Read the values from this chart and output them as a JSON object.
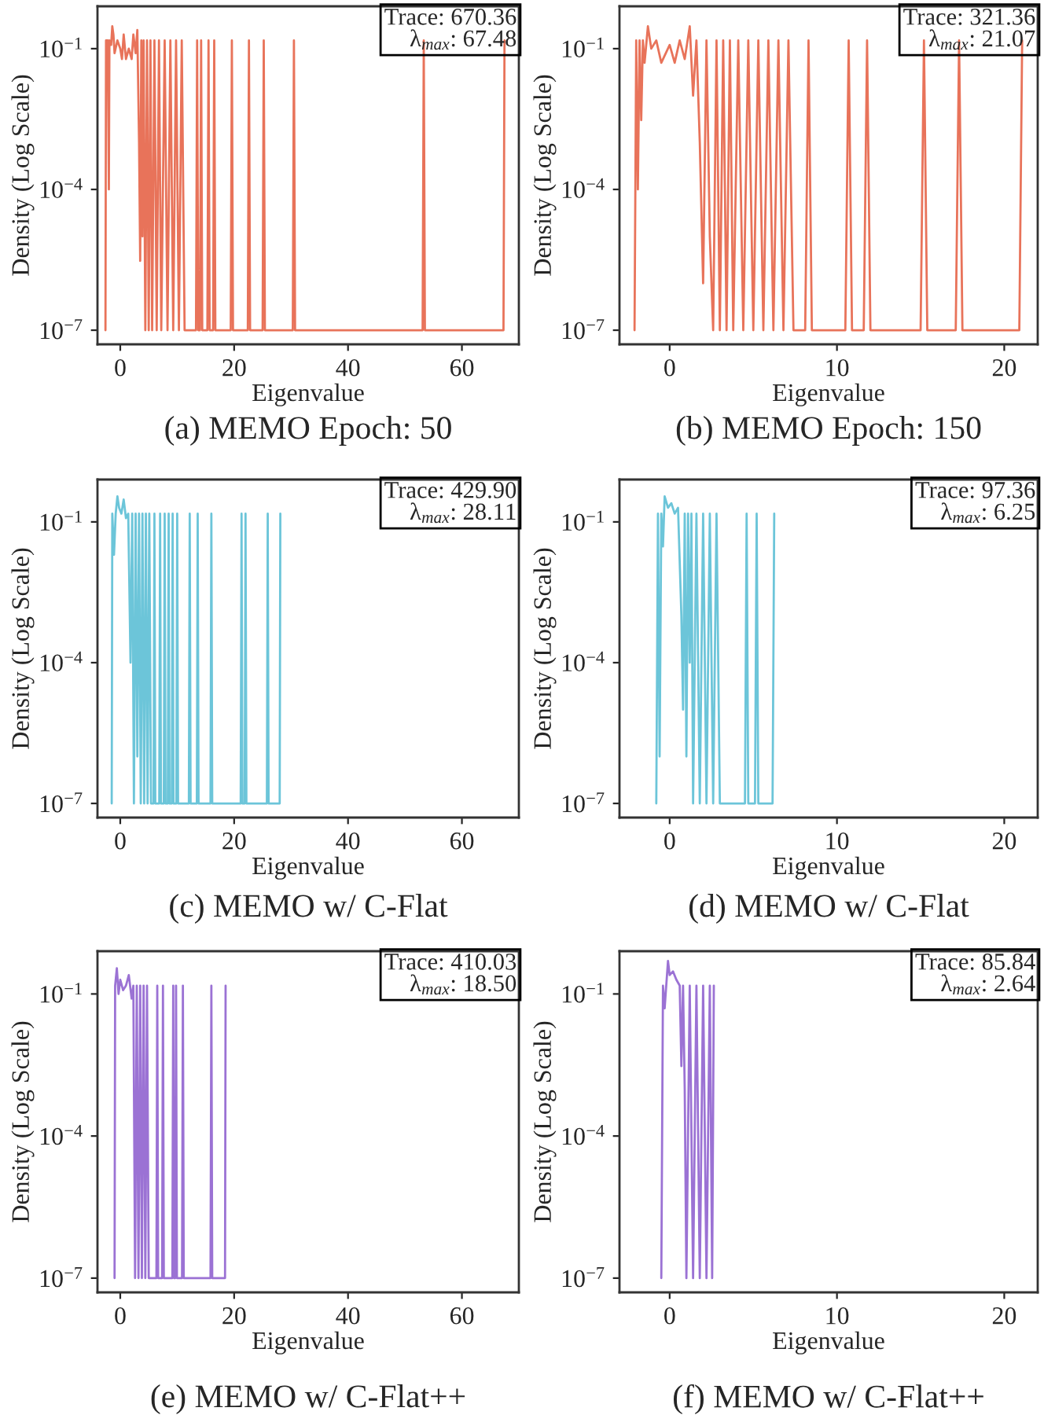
{
  "chart_data": [
    {
      "type": "line",
      "title": "(a) MEMO Epoch: 50",
      "xlabel": "Eigenvalue",
      "ylabel": "Density (Log Scale)",
      "log": true,
      "xlim": [
        -4,
        70
      ],
      "xticks": [
        0,
        20,
        40,
        60
      ],
      "ylim": [
        5e-08,
        0.8
      ],
      "yticks": [
        {
          "value": 1e-07,
          "label": "10$^{−7}$"
        },
        {
          "value": 0.0001,
          "label": "10$^{−4}$"
        },
        {
          "value": 0.1,
          "label": "10$^{−1}$"
        }
      ],
      "annotations": [
        "Trace: 670.36\nλ$_{max}$: 67.48"
      ],
      "series": [
        {
          "color": "#e8735a",
          "x": [
            -2.6,
            -2.5,
            -2.2,
            -2.0,
            -1.9,
            -1.6,
            -1.4,
            -1.2,
            -1.0,
            -0.5,
            0,
            0.3,
            0.6,
            1.0,
            1.5,
            2.0,
            2.3,
            2.7,
            3.0,
            3.3,
            3.5,
            3.7,
            3.9,
            4.1,
            4.4,
            4.7,
            5.0,
            5.3,
            5.6,
            6.0,
            6.4,
            6.8,
            7.2,
            7.8,
            8.3,
            8.8,
            9.3,
            9.8,
            10.3,
            10.8,
            11.3,
            13.3,
            13.5,
            13.7,
            14.0,
            14.2,
            14.4,
            15.3,
            15.5,
            15.7,
            16.3,
            16.5,
            16.7,
            19.4,
            19.6,
            19.8,
            22.4,
            22.6,
            22.8,
            25.0,
            25.2,
            25.4,
            30.3,
            30.5,
            30.7,
            53.1,
            53.3,
            53.5,
            67.3,
            67.48
          ],
          "values": [
            1e-07,
            0.15,
            0.15,
            0.0001,
            0.15,
            0.12,
            0.3,
            0.2,
            0.08,
            0.15,
            0.1,
            0.06,
            0.2,
            0.06,
            0.1,
            0.06,
            0.2,
            0.08,
            0.25,
            0.001,
            3e-06,
            0.15,
            1e-05,
            0.15,
            1e-07,
            0.15,
            1e-07,
            0.15,
            1e-07,
            0.15,
            1e-07,
            0.15,
            1e-07,
            0.15,
            1e-07,
            0.15,
            1e-07,
            0.15,
            1e-07,
            0.15,
            1e-07,
            1e-07,
            0.15,
            1e-07,
            1e-07,
            0.15,
            1e-07,
            1e-07,
            0.15,
            1e-07,
            1e-07,
            0.15,
            1e-07,
            1e-07,
            0.15,
            1e-07,
            1e-07,
            0.15,
            1e-07,
            1e-07,
            0.15,
            1e-07,
            1e-07,
            0.15,
            1e-07,
            1e-07,
            0.15,
            1e-07,
            1e-07,
            0.15
          ]
        }
      ]
    },
    {
      "type": "line",
      "title": "(b) MEMO Epoch: 150",
      "xlabel": "Eigenvalue",
      "ylabel": "Density (Log Scale)",
      "log": true,
      "xlim": [
        -3,
        22
      ],
      "xticks": [
        0,
        10,
        20
      ],
      "ylim": [
        5e-08,
        0.8
      ],
      "yticks": [
        {
          "value": 1e-07,
          "label": "10$^{−7}$"
        },
        {
          "value": 0.0001,
          "label": "10$^{−4}$"
        },
        {
          "value": 0.1,
          "label": "10$^{−1}$"
        }
      ],
      "annotations": [
        "Trace: 321.36\nλ$_{max}$: 21.07"
      ],
      "series": [
        {
          "color": "#e8735a",
          "x": [
            -2.1,
            -2.0,
            -1.9,
            -1.8,
            -1.7,
            -1.6,
            -1.5,
            -1.3,
            -1.1,
            -0.8,
            -0.5,
            0,
            0.3,
            0.6,
            0.9,
            1.2,
            1.4,
            1.6,
            1.8,
            2.0,
            2.2,
            2.4,
            2.6,
            2.8,
            3.0,
            3.2,
            3.4,
            3.6,
            3.8,
            4.1,
            4.4,
            4.7,
            5.0,
            5.3,
            5.6,
            5.9,
            6.2,
            6.5,
            6.8,
            7.1,
            7.4,
            8.1,
            8.3,
            8.5,
            10.5,
            10.7,
            10.9,
            11.6,
            11.8,
            12.0,
            15.0,
            15.2,
            15.4,
            17.1,
            17.3,
            17.5,
            20.9,
            21.07
          ],
          "values": [
            1e-07,
            0.15,
            0.0001,
            0.15,
            0.003,
            0.15,
            0.05,
            0.3,
            0.1,
            0.15,
            0.05,
            0.12,
            0.05,
            0.15,
            0.06,
            0.3,
            0.01,
            0.15,
            0.001,
            1e-06,
            0.15,
            1e-05,
            1e-07,
            0.15,
            1e-07,
            0.15,
            1e-07,
            0.15,
            1e-07,
            0.15,
            1e-07,
            0.15,
            1e-07,
            0.15,
            1e-07,
            0.15,
            1e-07,
            0.15,
            1e-07,
            0.15,
            1e-07,
            1e-07,
            0.15,
            1e-07,
            1e-07,
            0.15,
            1e-07,
            1e-07,
            0.15,
            1e-07,
            1e-07,
            0.15,
            1e-07,
            1e-07,
            0.15,
            1e-07,
            1e-07,
            0.15
          ]
        }
      ]
    },
    {
      "type": "line",
      "title": "(c) MEMO w/ C-Flat",
      "xlabel": "Eigenvalue",
      "ylabel": "Density (Log Scale)",
      "log": true,
      "xlim": [
        -4,
        70
      ],
      "xticks": [
        0,
        20,
        40,
        60
      ],
      "ylim": [
        5e-08,
        0.8
      ],
      "yticks": [
        {
          "value": 1e-07,
          "label": "10$^{−7}$"
        },
        {
          "value": 0.0001,
          "label": "10$^{−4}$"
        },
        {
          "value": 0.1,
          "label": "10$^{−1}$"
        }
      ],
      "annotations": [
        "Trace: 429.90\nλ$_{max}$: 28.11"
      ],
      "series": [
        {
          "color": "#6cc5d9",
          "x": [
            -1.5,
            -1.4,
            -1.1,
            -0.8,
            -0.5,
            -0.2,
            0.2,
            0.6,
            1.0,
            1.4,
            1.8,
            2.1,
            2.4,
            2.7,
            3.0,
            3.3,
            3.6,
            3.9,
            4.2,
            4.5,
            4.8,
            5.1,
            5.4,
            5.85,
            6.0,
            6.15,
            6.85,
            7.0,
            7.15,
            7.65,
            7.8,
            7.95,
            8.35,
            8.5,
            8.65,
            9.05,
            9.2,
            9.35,
            9.85,
            10.0,
            10.15,
            12.05,
            12.2,
            12.35,
            13.45,
            13.6,
            13.75,
            15.85,
            16.0,
            16.15,
            21.15,
            21.3,
            21.45,
            21.85,
            22.0,
            22.15,
            25.75,
            25.9,
            26.05,
            28.0,
            28.11
          ],
          "values": [
            1e-07,
            0.15,
            0.02,
            0.15,
            0.35,
            0.2,
            0.15,
            0.3,
            0.12,
            0.15,
            0.0001,
            0.15,
            1e-07,
            0.15,
            1e-06,
            0.15,
            1e-07,
            0.15,
            1e-07,
            0.15,
            1e-07,
            0.15,
            1e-07,
            1e-07,
            0.15,
            1e-07,
            1e-07,
            0.15,
            1e-07,
            1e-07,
            0.15,
            1e-07,
            1e-07,
            0.15,
            1e-07,
            1e-07,
            0.15,
            1e-07,
            1e-07,
            0.15,
            1e-07,
            1e-07,
            0.15,
            1e-07,
            1e-07,
            0.15,
            1e-07,
            1e-07,
            0.15,
            1e-07,
            1e-07,
            0.15,
            1e-07,
            1e-07,
            0.15,
            1e-07,
            1e-07,
            0.15,
            1e-07,
            1e-07,
            0.15
          ]
        }
      ]
    },
    {
      "type": "line",
      "title": "(d) MEMO w/ C-Flat",
      "xlabel": "Eigenvalue",
      "ylabel": "Density (Log Scale)",
      "log": true,
      "xlim": [
        -3,
        22
      ],
      "xticks": [
        0,
        10,
        20
      ],
      "ylim": [
        5e-08,
        0.8
      ],
      "yticks": [
        {
          "value": 1e-07,
          "label": "10$^{−7}$"
        },
        {
          "value": 0.0001,
          "label": "10$^{−4}$"
        },
        {
          "value": 0.1,
          "label": "10$^{−1}$"
        }
      ],
      "annotations": [
        "Trace: 97.36\nλ$_{max}$: 6.25"
      ],
      "series": [
        {
          "color": "#6cc5d9",
          "x": [
            -0.8,
            -0.7,
            -0.6,
            -0.5,
            -0.4,
            -0.3,
            -0.1,
            0.1,
            0.3,
            0.5,
            0.7,
            0.8,
            0.9,
            1.0,
            1.1,
            1.2,
            1.3,
            1.4,
            1.6,
            1.8,
            2.0,
            2.2,
            2.4,
            2.6,
            2.8,
            3.0,
            4.5,
            4.6,
            4.7,
            5.1,
            5.2,
            5.3,
            6.15,
            6.25
          ],
          "values": [
            1e-07,
            0.15,
            1e-06,
            0.15,
            0.03,
            0.35,
            0.2,
            0.25,
            0.15,
            0.2,
            0.001,
            1e-05,
            0.15,
            1e-06,
            0.15,
            0.0001,
            0.15,
            1e-07,
            0.15,
            1e-07,
            0.15,
            1e-07,
            0.15,
            1e-07,
            0.15,
            1e-07,
            1e-07,
            0.15,
            1e-07,
            1e-07,
            0.15,
            1e-07,
            1e-07,
            0.15
          ]
        }
      ]
    },
    {
      "type": "line",
      "title": "(e) MEMO w/ C-Flat++",
      "xlabel": "Eigenvalue",
      "ylabel": "Density (Log Scale)",
      "log": true,
      "xlim": [
        -4,
        70
      ],
      "xticks": [
        0,
        20,
        40,
        60
      ],
      "ylim": [
        5e-08,
        0.8
      ],
      "yticks": [
        {
          "value": 1e-07,
          "label": "10$^{−7}$"
        },
        {
          "value": 0.0001,
          "label": "10$^{−4}$"
        },
        {
          "value": 0.1,
          "label": "10$^{−1}$"
        }
      ],
      "annotations": [
        "Trace: 410.03\nλ$_{max}$: 18.50"
      ],
      "series": [
        {
          "color": "#9b72d4",
          "x": [
            -1.0,
            -0.9,
            -0.6,
            -0.3,
            0.0,
            0.5,
            1.0,
            1.5,
            2.0,
            2.3,
            2.6,
            2.9,
            3.2,
            3.5,
            3.8,
            4.1,
            4.4,
            4.7,
            5.0,
            6.35,
            6.5,
            6.65,
            7.35,
            7.5,
            7.65,
            9.15,
            9.3,
            9.45,
            9.65,
            9.8,
            9.95,
            10.85,
            11.0,
            11.15,
            15.85,
            16.0,
            16.15,
            18.4,
            18.5
          ],
          "values": [
            1e-07,
            0.15,
            0.35,
            0.1,
            0.2,
            0.12,
            0.15,
            0.25,
            0.08,
            0.15,
            1e-07,
            0.15,
            1e-07,
            0.15,
            1e-07,
            0.15,
            1e-07,
            0.15,
            1e-07,
            1e-07,
            0.15,
            1e-07,
            1e-07,
            0.15,
            1e-07,
            1e-07,
            0.15,
            1e-07,
            1e-07,
            0.15,
            1e-07,
            1e-07,
            0.15,
            1e-07,
            1e-07,
            0.15,
            1e-07,
            1e-07,
            0.15
          ]
        }
      ]
    },
    {
      "type": "line",
      "title": "(f) MEMO w/ C-Flat++",
      "xlabel": "Eigenvalue",
      "ylabel": "Density (Log Scale)",
      "log": true,
      "xlim": [
        -3,
        22
      ],
      "xticks": [
        0,
        10,
        20
      ],
      "ylim": [
        5e-08,
        0.8
      ],
      "yticks": [
        {
          "value": 1e-07,
          "label": "10$^{−7}$"
        },
        {
          "value": 0.0001,
          "label": "10$^{−4}$"
        },
        {
          "value": 0.1,
          "label": "10$^{−1}$"
        }
      ],
      "annotations": [
        "Trace: 85.84\nλ$_{max}$: 2.64"
      ],
      "series": [
        {
          "color": "#9b72d4",
          "x": [
            -0.5,
            -0.4,
            -0.3,
            -0.1,
            0.0,
            0.2,
            0.4,
            0.6,
            0.7,
            0.8,
            0.9,
            1.0,
            1.2,
            1.4,
            1.6,
            1.8,
            2.0,
            2.2,
            2.4,
            2.54,
            2.64
          ],
          "values": [
            1e-07,
            0.15,
            0.05,
            0.5,
            0.25,
            0.3,
            0.2,
            0.15,
            0.003,
            0.15,
            0.001,
            1e-07,
            0.15,
            1e-07,
            0.15,
            1e-07,
            0.15,
            1e-07,
            0.15,
            1e-07,
            0.15
          ]
        }
      ]
    }
  ]
}
